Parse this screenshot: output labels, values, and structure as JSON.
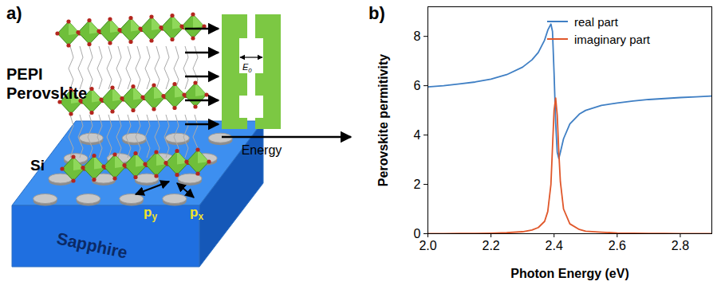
{
  "panel_labels": [
    "a)",
    "b)"
  ],
  "diagram": {
    "material_label": [
      "PEPI",
      "Perovskite"
    ],
    "layer_label": "Si",
    "substrate_label": "Sapphire",
    "period_labels": [
      {
        "main": "p",
        "sub": "y"
      },
      {
        "main": "p",
        "sub": "x"
      }
    ],
    "gap_label": {
      "main": "E",
      "sub": "0"
    },
    "axis_label": "Energy"
  },
  "chart_data": {
    "type": "line",
    "x_label": "Photon Energy (eV)",
    "y_label": "Perovskite permitivity",
    "x": [
      2.0,
      2.05,
      2.1,
      2.15,
      2.2,
      2.25,
      2.3,
      2.33,
      2.35,
      2.37,
      2.38,
      2.39,
      2.395,
      2.4,
      2.405,
      2.41,
      2.415,
      2.42,
      2.43,
      2.45,
      2.48,
      2.5,
      2.55,
      2.6,
      2.65,
      2.7,
      2.75,
      2.8,
      2.85,
      2.9
    ],
    "series": [
      {
        "name": "real part",
        "color": "#3f7fc4",
        "values": [
          5.95,
          6.0,
          6.07,
          6.15,
          6.27,
          6.45,
          6.75,
          7.05,
          7.35,
          7.85,
          8.25,
          8.5,
          8.2,
          6.5,
          4.5,
          3.3,
          3.05,
          3.3,
          3.85,
          4.45,
          4.85,
          5.0,
          5.2,
          5.3,
          5.38,
          5.44,
          5.48,
          5.52,
          5.55,
          5.58
        ]
      },
      {
        "name": "imaginary part",
        "color": "#e0572a",
        "values": [
          0.0,
          0.0,
          0.01,
          0.01,
          0.02,
          0.04,
          0.08,
          0.15,
          0.25,
          0.5,
          0.9,
          2.0,
          3.5,
          5.0,
          5.5,
          4.8,
          3.3,
          2.1,
          1.0,
          0.4,
          0.17,
          0.1,
          0.06,
          0.03,
          0.02,
          0.01,
          0.01,
          0.0,
          0.0,
          0.0
        ]
      }
    ],
    "xlim": [
      2.0,
      2.9
    ],
    "xticks": [
      {
        "value": 2.0,
        "label": "2.0"
      },
      2.2,
      2.4,
      2.6,
      2.8
    ],
    "ylim": [
      0,
      9.2
    ],
    "yticks": [
      0,
      2,
      4,
      6,
      8
    ],
    "grid": false,
    "legend": "upper right"
  }
}
